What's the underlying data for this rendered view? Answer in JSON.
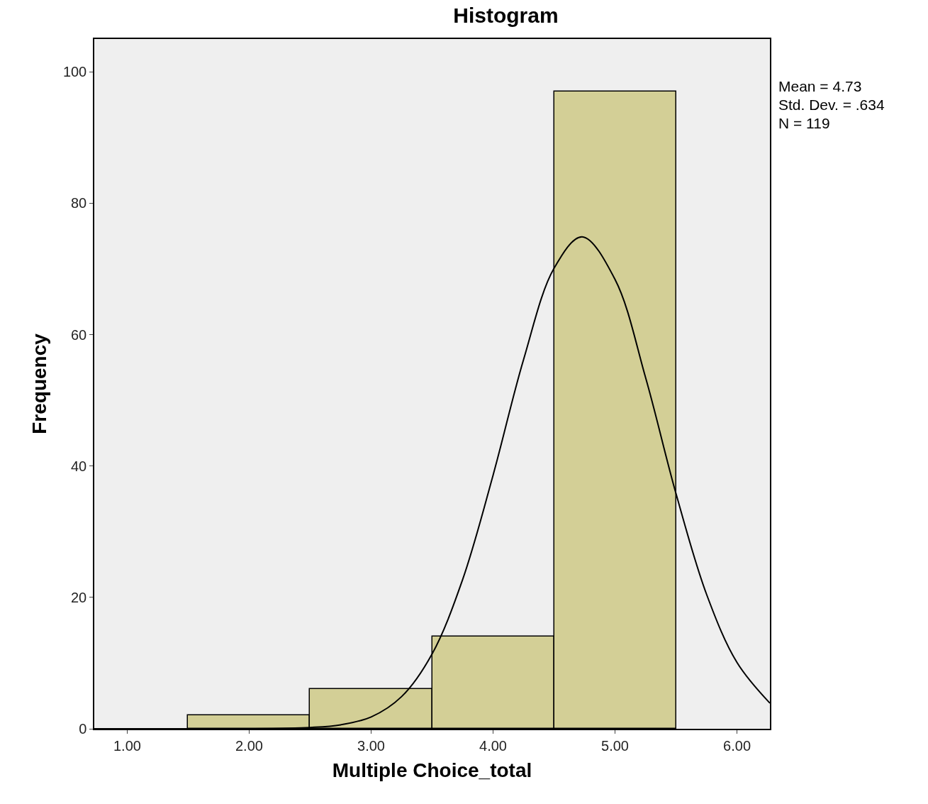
{
  "chart_data": {
    "type": "histogram",
    "title": "Histogram",
    "xlabel": "Multiple Choice_total",
    "ylabel": "Frequency",
    "bins": [
      1.5,
      2.5,
      3.5,
      4.5,
      5.5
    ],
    "series": [
      {
        "color": "#d3cf96",
        "values": [
          2,
          6,
          14,
          97
        ]
      },
      {
        "type": "line",
        "color": "#000000",
        "x": [
          0.73,
          1.5,
          2.0,
          2.5,
          2.75,
          3.0,
          3.25,
          3.5,
          3.75,
          4.0,
          4.25,
          4.5,
          4.73,
          5.0,
          5.25,
          5.5,
          5.75,
          6.0,
          6.27
        ],
        "values": [
          0,
          0,
          0,
          0.2,
          0.6,
          1.8,
          4.9,
          11.4,
          22.7,
          38.6,
          56.2,
          70.1,
          74.9,
          68.4,
          53.5,
          35.8,
          20.5,
          10.1,
          3.9
        ]
      }
    ],
    "xlim": [
      0.73,
      6.27
    ],
    "ylim": [
      0,
      105
    ],
    "xticks": [
      {
        "value": 1,
        "label": "1.00"
      },
      {
        "value": 2,
        "label": "2.00"
      },
      {
        "value": 3,
        "label": "3.00"
      },
      {
        "value": 4,
        "label": "4.00"
      },
      {
        "value": 5,
        "label": "5.00"
      },
      {
        "value": 6,
        "label": "6.00"
      }
    ],
    "yticks": [
      0,
      20,
      40,
      60,
      80,
      100
    ],
    "annotations": [
      "Mean = 4.73",
      "Std. Dev. = .634",
      "N = 119"
    ]
  }
}
